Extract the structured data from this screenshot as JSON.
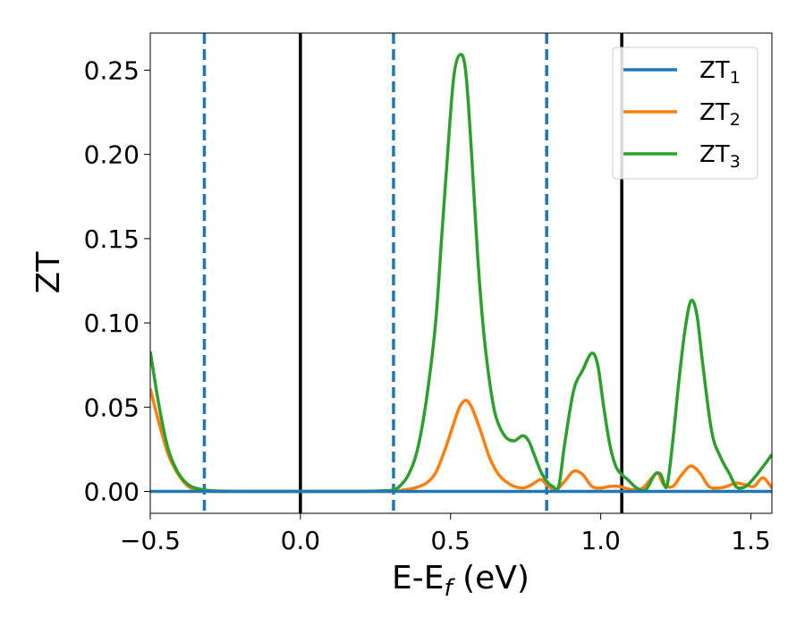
{
  "chart_data": {
    "type": "line",
    "xlabel": {
      "main": "E-E",
      "sub": "f",
      "unit": " (eV)"
    },
    "ylabel": "ZT",
    "xlim": [
      -0.5,
      1.57
    ],
    "ylim": [
      -0.013,
      0.272
    ],
    "x_ticks": [
      {
        "value": -0.5,
        "label": "−0.5"
      },
      {
        "value": 0.0,
        "label": "0.0"
      },
      {
        "value": 0.5,
        "label": "0.5"
      },
      {
        "value": 1.0,
        "label": "1.0"
      },
      {
        "value": 1.5,
        "label": "1.5"
      }
    ],
    "y_ticks": [
      {
        "value": 0.0,
        "label": "0.00"
      },
      {
        "value": 0.05,
        "label": "0.05"
      },
      {
        "value": 0.1,
        "label": "0.10"
      },
      {
        "value": 0.15,
        "label": "0.15"
      },
      {
        "value": 0.2,
        "label": "0.20"
      },
      {
        "value": 0.25,
        "label": "0.25"
      }
    ],
    "legend_position": "top-right",
    "vertical_lines": [
      {
        "x": -0.32,
        "style": "dashed",
        "color": "#1f77b4"
      },
      {
        "x": 0.0,
        "style": "solid",
        "color": "#000000"
      },
      {
        "x": 0.31,
        "style": "dashed",
        "color": "#1f77b4"
      },
      {
        "x": 0.82,
        "style": "dashed",
        "color": "#1f77b4"
      },
      {
        "x": 1.07,
        "style": "solid",
        "color": "#000000"
      }
    ],
    "series": [
      {
        "name": "ZT",
        "sub": "1",
        "color": "#1f77b4",
        "x": [
          -0.5,
          1.57
        ],
        "y": [
          0.0,
          0.0
        ]
      },
      {
        "name": "ZT",
        "sub": "2",
        "color": "#ff7f0e",
        "x": [
          -0.5,
          -0.47,
          -0.44,
          -0.41,
          -0.38,
          -0.35,
          -0.3,
          -0.2,
          0.0,
          0.2,
          0.3,
          0.33,
          0.38,
          0.42,
          0.45,
          0.48,
          0.51,
          0.53,
          0.55,
          0.57,
          0.6,
          0.63,
          0.66,
          0.7,
          0.74,
          0.77,
          0.8,
          0.82,
          0.85,
          0.88,
          0.91,
          0.94,
          0.97,
          1.0,
          1.03,
          1.06,
          1.08,
          1.11,
          1.14,
          1.17,
          1.19,
          1.21,
          1.24,
          1.27,
          1.3,
          1.33,
          1.36,
          1.39,
          1.42,
          1.45,
          1.48,
          1.51,
          1.54,
          1.57
        ],
        "y": [
          0.061,
          0.04,
          0.022,
          0.011,
          0.004,
          0.001,
          0.0,
          0.0,
          0.0,
          0.0,
          0.0,
          0.0005,
          0.002,
          0.005,
          0.011,
          0.024,
          0.04,
          0.05,
          0.054,
          0.05,
          0.036,
          0.02,
          0.01,
          0.004,
          0.002,
          0.004,
          0.007,
          0.004,
          0.001,
          0.006,
          0.012,
          0.01,
          0.003,
          0.002,
          0.003,
          0.003,
          0.002,
          0.001,
          0.002,
          0.008,
          0.011,
          0.004,
          0.003,
          0.01,
          0.015,
          0.011,
          0.003,
          0.002,
          0.003,
          0.005,
          0.004,
          0.003,
          0.008,
          0.002
        ]
      },
      {
        "name": "ZT",
        "sub": "3",
        "color": "#2ca02c",
        "x": [
          -0.5,
          -0.47,
          -0.44,
          -0.41,
          -0.38,
          -0.35,
          -0.3,
          -0.2,
          0.0,
          0.2,
          0.29,
          0.31,
          0.33,
          0.36,
          0.39,
          0.42,
          0.45,
          0.47,
          0.49,
          0.51,
          0.53,
          0.55,
          0.57,
          0.59,
          0.61,
          0.63,
          0.65,
          0.68,
          0.71,
          0.74,
          0.76,
          0.78,
          0.8,
          0.82,
          0.84,
          0.86,
          0.88,
          0.91,
          0.94,
          0.97,
          0.99,
          1.01,
          1.03,
          1.05,
          1.07,
          1.09,
          1.12,
          1.15,
          1.18,
          1.2,
          1.22,
          1.24,
          1.26,
          1.28,
          1.3,
          1.32,
          1.34,
          1.37,
          1.4,
          1.43,
          1.45,
          1.47,
          1.49,
          1.52,
          1.55,
          1.57
        ],
        "y": [
          0.083,
          0.05,
          0.025,
          0.012,
          0.005,
          0.002,
          0.0005,
          0.0,
          0.0,
          0.0,
          0.0005,
          0.001,
          0.003,
          0.01,
          0.025,
          0.055,
          0.1,
          0.15,
          0.2,
          0.245,
          0.259,
          0.25,
          0.2,
          0.14,
          0.095,
          0.065,
          0.045,
          0.033,
          0.03,
          0.033,
          0.03,
          0.021,
          0.012,
          0.006,
          0.003,
          0.003,
          0.028,
          0.06,
          0.072,
          0.082,
          0.075,
          0.05,
          0.028,
          0.015,
          0.01,
          0.007,
          0.002,
          0.001,
          0.01,
          0.01,
          0.003,
          0.03,
          0.065,
          0.095,
          0.113,
          0.105,
          0.075,
          0.035,
          0.02,
          0.01,
          0.003,
          0.002,
          0.004,
          0.01,
          0.017,
          0.022
        ]
      }
    ]
  }
}
